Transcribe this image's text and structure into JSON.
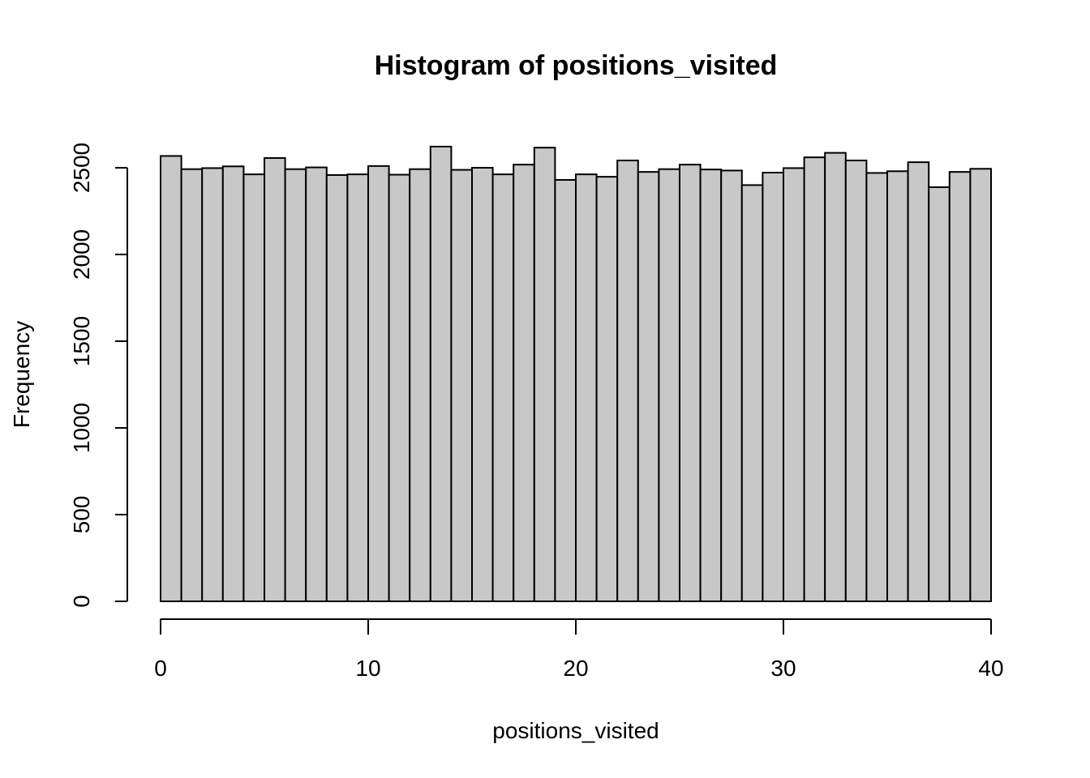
{
  "chart_data": {
    "type": "bar",
    "subtype": "histogram",
    "title": "Histogram of positions_visited",
    "xlabel": "positions_visited",
    "ylabel": "Frequency",
    "xlim": [
      0,
      40
    ],
    "ylim": [
      0,
      2620
    ],
    "bin_width": 1,
    "bin_starts": [
      0,
      1,
      2,
      3,
      4,
      5,
      6,
      7,
      8,
      9,
      10,
      11,
      12,
      13,
      14,
      15,
      16,
      17,
      18,
      19,
      20,
      21,
      22,
      23,
      24,
      25,
      26,
      27,
      28,
      29,
      30,
      31,
      32,
      33,
      34,
      35,
      36,
      37,
      38,
      39
    ],
    "values": [
      2568,
      2492,
      2498,
      2508,
      2462,
      2556,
      2492,
      2502,
      2458,
      2462,
      2510,
      2460,
      2492,
      2622,
      2488,
      2500,
      2462,
      2518,
      2616,
      2430,
      2462,
      2448,
      2542,
      2476,
      2492,
      2518,
      2490,
      2484,
      2400,
      2472,
      2498,
      2560,
      2586,
      2542,
      2470,
      2480,
      2532,
      2388,
      2476,
      2494
    ],
    "x_ticks": [
      0,
      10,
      20,
      30,
      40
    ],
    "x_tick_labels": [
      "0",
      "10",
      "20",
      "30",
      "40"
    ],
    "y_ticks": [
      0,
      500,
      1000,
      1500,
      2000,
      2500
    ],
    "y_tick_labels": [
      "0",
      "500",
      "1000",
      "1500",
      "2000",
      "2500"
    ],
    "grid": false,
    "bar_fill": "#c8c8c8",
    "bar_stroke": "#000000"
  }
}
